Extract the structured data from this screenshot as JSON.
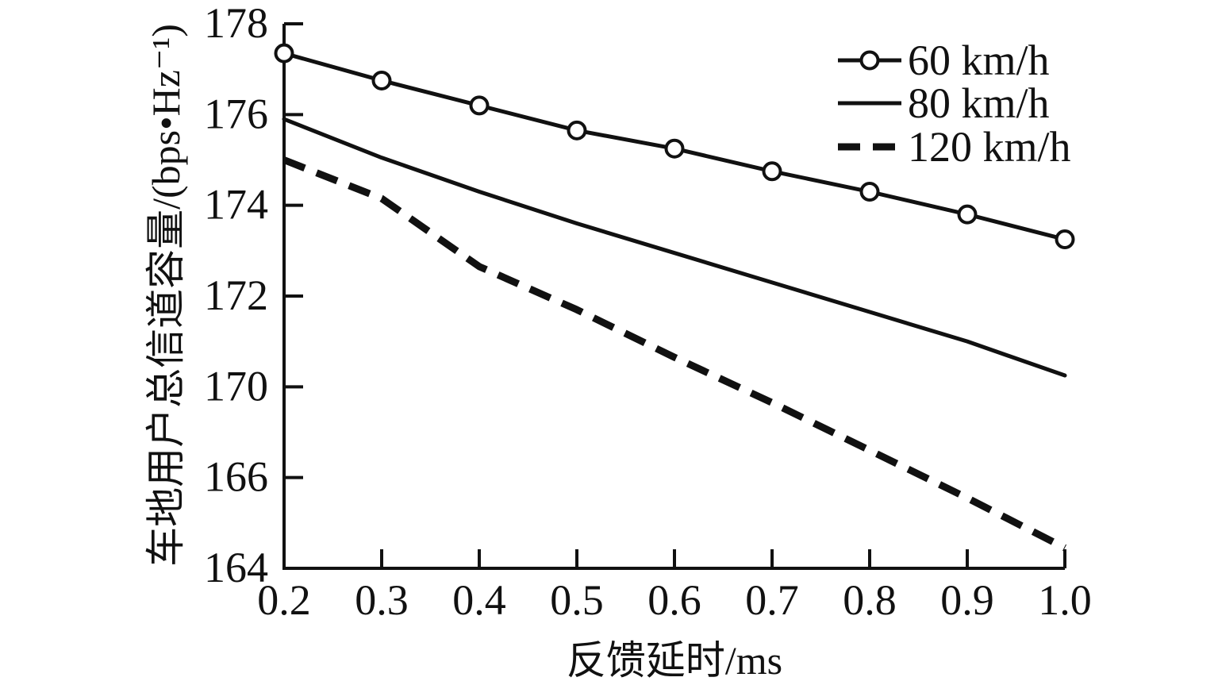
{
  "chart_data": {
    "type": "line",
    "xlabel": "反馈延时/ms",
    "ylabel": "车地用户总信道容量/(bps•Hz⁻¹)",
    "x": [
      0.2,
      0.3,
      0.4,
      0.5,
      0.6,
      0.7,
      0.8,
      0.9,
      1.0
    ],
    "x_tick_labels": [
      "0.2",
      "0.3",
      "0.4",
      "0.5",
      "0.6",
      "0.7",
      "0.8",
      "0.9",
      "1.0"
    ],
    "y_tick_labels": [
      "178",
      "176",
      "174",
      "172",
      "170",
      "166",
      "164"
    ],
    "y_tick_values": [
      178,
      176,
      174,
      172,
      170,
      166,
      164
    ],
    "ylim_as_printed": [
      164,
      178
    ],
    "xlim": [
      0.2,
      1.0
    ],
    "grid": false,
    "legend_position": "top-right-inside",
    "ink_color": "#111111",
    "series": [
      {
        "name": "60 km/h",
        "line": "solid",
        "marker": "circle",
        "values": [
          177.35,
          176.75,
          176.2,
          175.65,
          175.25,
          174.75,
          174.3,
          173.8,
          173.25
        ]
      },
      {
        "name": "80 km/h",
        "line": "solid",
        "marker": "none",
        "values": [
          175.9,
          175.05,
          174.3,
          173.6,
          172.95,
          172.3,
          171.65,
          171.0,
          170.25
        ]
      },
      {
        "name": "120 km/h",
        "line": "dashed",
        "marker": "none",
        "values": [
          175.0,
          174.15,
          172.65,
          171.7,
          170.65,
          169.3,
          167.2,
          165.55,
          164.45
        ]
      }
    ]
  }
}
